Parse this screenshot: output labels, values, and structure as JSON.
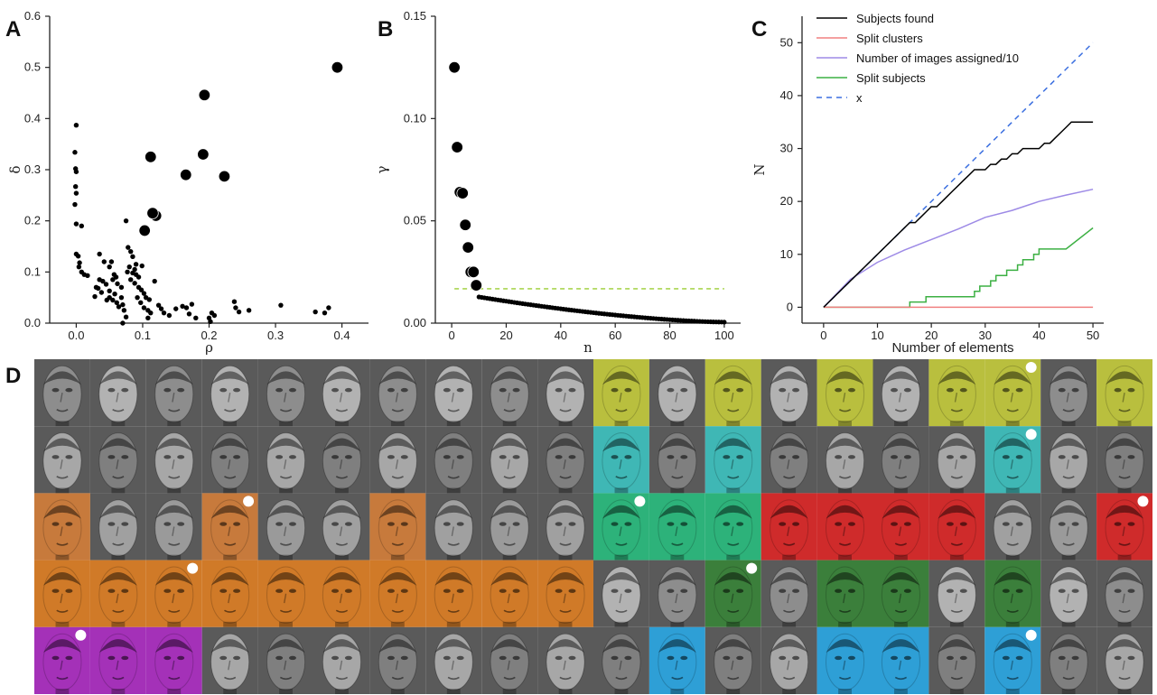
{
  "panels": {
    "A": "A",
    "B": "B",
    "C": "C",
    "D": "D"
  },
  "chart_data": [
    {
      "panel": "A",
      "type": "scatter",
      "xlabel": "ρ",
      "ylabel": "δ",
      "xlim": [
        -0.04,
        0.44
      ],
      "ylim": [
        0,
        0.6
      ],
      "xticks": [
        "0.0",
        "0.1",
        "0.2",
        "0.3",
        "0.4"
      ],
      "yticks": [
        "0.0",
        "0.1",
        "0.2",
        "0.3",
        "0.4",
        "0.5",
        "0.6"
      ],
      "series": [
        {
          "marker": "small-dot",
          "points": [
            [
              0.0,
              0.387
            ],
            [
              -0.002,
              0.334
            ],
            [
              -0.001,
              0.302
            ],
            [
              0.0,
              0.296
            ],
            [
              -0.001,
              0.267
            ],
            [
              0.0,
              0.254
            ],
            [
              -0.002,
              0.232
            ],
            [
              0.0,
              0.194
            ],
            [
              0.008,
              0.19
            ],
            [
              0.0,
              0.135
            ],
            [
              0.003,
              0.131
            ],
            [
              0.005,
              0.118
            ],
            [
              0.004,
              0.11
            ],
            [
              0.008,
              0.1
            ],
            [
              0.012,
              0.095
            ],
            [
              0.017,
              0.093
            ],
            [
              0.035,
              0.135
            ],
            [
              0.042,
              0.12
            ],
            [
              0.035,
              0.085
            ],
            [
              0.04,
              0.082
            ],
            [
              0.045,
              0.076
            ],
            [
              0.03,
              0.07
            ],
            [
              0.033,
              0.068
            ],
            [
              0.038,
              0.06
            ],
            [
              0.028,
              0.052
            ],
            [
              0.05,
              0.11
            ],
            [
              0.053,
              0.12
            ],
            [
              0.057,
              0.095
            ],
            [
              0.06,
              0.09
            ],
            [
              0.055,
              0.085
            ],
            [
              0.062,
              0.077
            ],
            [
              0.068,
              0.07
            ],
            [
              0.05,
              0.063
            ],
            [
              0.058,
              0.057
            ],
            [
              0.05,
              0.05
            ],
            [
              0.046,
              0.045
            ],
            [
              0.055,
              0.045
            ],
            [
              0.061,
              0.04
            ],
            [
              0.064,
              0.032
            ],
            [
              0.07,
              0.036
            ],
            [
              0.072,
              0.025
            ],
            [
              0.075,
              0.012
            ],
            [
              0.068,
              0.05
            ],
            [
              0.075,
              0.2
            ],
            [
              0.078,
              0.148
            ],
            [
              0.082,
              0.14
            ],
            [
              0.085,
              0.13
            ],
            [
              0.088,
              0.105
            ],
            [
              0.09,
              0.115
            ],
            [
              0.08,
              0.11
            ],
            [
              0.077,
              0.1
            ],
            [
              0.085,
              0.098
            ],
            [
              0.09,
              0.095
            ],
            [
              0.094,
              0.09
            ],
            [
              0.099,
              0.112
            ],
            [
              0.082,
              0.085
            ],
            [
              0.088,
              0.078
            ],
            [
              0.094,
              0.07
            ],
            [
              0.098,
              0.065
            ],
            [
              0.102,
              0.058
            ],
            [
              0.092,
              0.05
            ],
            [
              0.097,
              0.04
            ],
            [
              0.105,
              0.05
            ],
            [
              0.11,
              0.046
            ],
            [
              0.102,
              0.03
            ],
            [
              0.108,
              0.025
            ],
            [
              0.112,
              0.02
            ],
            [
              0.108,
              0.01
            ],
            [
              0.118,
              0.082
            ],
            [
              0.124,
              0.035
            ],
            [
              0.128,
              0.028
            ],
            [
              0.132,
              0.02
            ],
            [
              0.14,
              0.015
            ],
            [
              0.15,
              0.028
            ],
            [
              0.16,
              0.033
            ],
            [
              0.166,
              0.03
            ],
            [
              0.174,
              0.037
            ],
            [
              0.17,
              0.018
            ],
            [
              0.18,
              0.01
            ],
            [
              0.2,
              0.01
            ],
            [
              0.204,
              0.02
            ],
            [
              0.208,
              0.015
            ],
            [
              0.202,
              0.003
            ],
            [
              0.238,
              0.042
            ],
            [
              0.24,
              0.03
            ],
            [
              0.245,
              0.022
            ],
            [
              0.26,
              0.025
            ],
            [
              0.308,
              0.035
            ],
            [
              0.36,
              0.022
            ],
            [
              0.374,
              0.02
            ],
            [
              0.38,
              0.03
            ],
            [
              0.07,
              0.0
            ]
          ]
        },
        {
          "marker": "large-dot",
          "points": [
            [
              0.393,
              0.5
            ],
            [
              0.193,
              0.446
            ],
            [
              0.191,
              0.33
            ],
            [
              0.112,
              0.325
            ],
            [
              0.165,
              0.29
            ],
            [
              0.223,
              0.287
            ],
            [
              0.12,
              0.21
            ],
            [
              0.115,
              0.215
            ],
            [
              0.103,
              0.181
            ]
          ]
        }
      ]
    },
    {
      "panel": "B",
      "type": "scatter",
      "xlabel": "n",
      "ylabel": "γ",
      "xlim": [
        -6,
        106
      ],
      "ylim": [
        0,
        0.15
      ],
      "xticks": [
        "0",
        "20",
        "40",
        "60",
        "80",
        "100"
      ],
      "yticks": [
        "0.00",
        "0.05",
        "0.10",
        "0.15"
      ],
      "threshold": 0.0168,
      "large_points": [
        [
          1,
          0.125
        ],
        [
          2,
          0.086
        ],
        [
          3,
          0.064
        ],
        [
          4,
          0.0635
        ],
        [
          5,
          0.048
        ],
        [
          6,
          0.037
        ],
        [
          7,
          0.025
        ],
        [
          8,
          0.025
        ],
        [
          9,
          0.0185
        ]
      ],
      "small_tail": {
        "from_n": 10,
        "to_n": 100,
        "start": 0.0128,
        "end": 0.0005
      }
    },
    {
      "panel": "C",
      "type": "line",
      "xlabel": "Number of elements",
      "ylabel": "N",
      "xlim": [
        -4,
        52
      ],
      "ylim": [
        -3,
        55
      ],
      "xticks": [
        "0",
        "10",
        "20",
        "30",
        "40",
        "50"
      ],
      "yticks": [
        "0",
        "10",
        "20",
        "30",
        "40",
        "50"
      ],
      "legend_position": "top-left",
      "series": [
        {
          "name": "Subjects found",
          "color": "#000000",
          "dash": "",
          "points": [
            [
              0,
              0
            ],
            [
              16,
              16
            ],
            [
              17,
              16
            ],
            [
              18,
              17
            ],
            [
              19,
              18
            ],
            [
              20,
              19
            ],
            [
              21,
              19
            ],
            [
              22,
              20
            ],
            [
              23,
              21
            ],
            [
              24,
              22
            ],
            [
              25,
              23
            ],
            [
              26,
              24
            ],
            [
              27,
              25
            ],
            [
              28,
              26
            ],
            [
              29,
              26
            ],
            [
              30,
              26
            ],
            [
              31,
              27
            ],
            [
              32,
              27
            ],
            [
              33,
              28
            ],
            [
              34,
              28
            ],
            [
              35,
              29
            ],
            [
              36,
              29
            ],
            [
              37,
              30
            ],
            [
              38,
              30
            ],
            [
              39,
              30
            ],
            [
              40,
              30
            ],
            [
              41,
              31
            ],
            [
              42,
              31
            ],
            [
              43,
              32
            ],
            [
              44,
              33
            ],
            [
              45,
              34
            ],
            [
              46,
              35
            ],
            [
              50,
              35
            ]
          ]
        },
        {
          "name": "Split clusters",
          "color": "#f08080",
          "dash": "",
          "points": [
            [
              0,
              0
            ],
            [
              50,
              0
            ]
          ]
        },
        {
          "name": "Number of images assigned/10",
          "color": "#9d8ae6",
          "dash": "",
          "points": [
            [
              0,
              0
            ],
            [
              5,
              5.3
            ],
            [
              10,
              8.5
            ],
            [
              15,
              10.8
            ],
            [
              20,
              12.8
            ],
            [
              25,
              14.8
            ],
            [
              30,
              17.0
            ],
            [
              35,
              18.3
            ],
            [
              40,
              20.0
            ],
            [
              45,
              21.2
            ],
            [
              50,
              22.3
            ]
          ]
        },
        {
          "name": "Split subjects",
          "color": "#3cb043",
          "dash": "",
          "points": [
            [
              0,
              0
            ],
            [
              16,
              0
            ],
            [
              16,
              1
            ],
            [
              19,
              1
            ],
            [
              19,
              2
            ],
            [
              20,
              2
            ],
            [
              28,
              2
            ],
            [
              28,
              3
            ],
            [
              29,
              3
            ],
            [
              29,
              4
            ],
            [
              31,
              4
            ],
            [
              31,
              5
            ],
            [
              32,
              5
            ],
            [
              32,
              6
            ],
            [
              34,
              6
            ],
            [
              34,
              7
            ],
            [
              36,
              7
            ],
            [
              36,
              8
            ],
            [
              37,
              8
            ],
            [
              37,
              9
            ],
            [
              39,
              9
            ],
            [
              39,
              10
            ],
            [
              40,
              10
            ],
            [
              40,
              11
            ],
            [
              45,
              11
            ],
            [
              50,
              15
            ]
          ]
        },
        {
          "name": "x",
          "color": "#3b6fe0",
          "dash": "6,5",
          "points": [
            [
              0,
              0
            ],
            [
              50,
              50
            ]
          ]
        }
      ]
    }
  ],
  "face_grid": {
    "panel": "D",
    "rows": 5,
    "cols": 20,
    "skin_shades": [
      "#8d8d8d",
      "#a7a7a7",
      "#9a9a9a",
      "#b2b2b2",
      "#7f7f7f",
      "#a0a0a0"
    ],
    "tint_colors": {
      "Y": "#b9bf3e",
      "T": "#3fb7b5",
      "O": "#c77a3c",
      "G": "#2db27a",
      "R": "#cf2b2b",
      "A": "#d07a28",
      "D": "#3b7f3b",
      "P": "#a431b8",
      "B": "#2e9fd6"
    },
    "cells": [
      [
        "-",
        "-",
        "-",
        "-",
        "-",
        "-",
        "-",
        "-",
        "-",
        "-",
        "Y",
        "-",
        "Y",
        "-",
        "Y",
        "-",
        "Y",
        "Y",
        "-",
        "Y"
      ],
      [
        "-",
        "-",
        "-",
        "-",
        "-",
        "-",
        "-",
        "-",
        "-",
        "-",
        "T",
        "-",
        "T",
        "-",
        "-",
        "-",
        "-",
        "T",
        "-",
        "-"
      ],
      [
        "O",
        "-",
        "-",
        "O",
        "-",
        "-",
        "O",
        "-",
        "-",
        "-",
        "G",
        "G",
        "G",
        "R",
        "R",
        "R",
        "R",
        "-",
        "-",
        "R"
      ],
      [
        "A",
        "A",
        "A",
        "A",
        "A",
        "A",
        "A",
        "A",
        "A",
        "A",
        "-",
        "-",
        "D",
        "-",
        "D",
        "D",
        "-",
        "D",
        "-",
        "-"
      ],
      [
        "P",
        "P",
        "P",
        "-",
        "-",
        "-",
        "-",
        "-",
        "-",
        "-",
        "-",
        "B",
        "-",
        "-",
        "B",
        "B",
        "-",
        "B",
        "-",
        "-"
      ]
    ],
    "white_dots": [
      [
        0,
        17
      ],
      [
        1,
        17
      ],
      [
        2,
        3
      ],
      [
        2,
        10
      ],
      [
        2,
        19
      ],
      [
        3,
        2
      ],
      [
        3,
        12
      ],
      [
        4,
        0
      ],
      [
        4,
        17
      ]
    ]
  }
}
